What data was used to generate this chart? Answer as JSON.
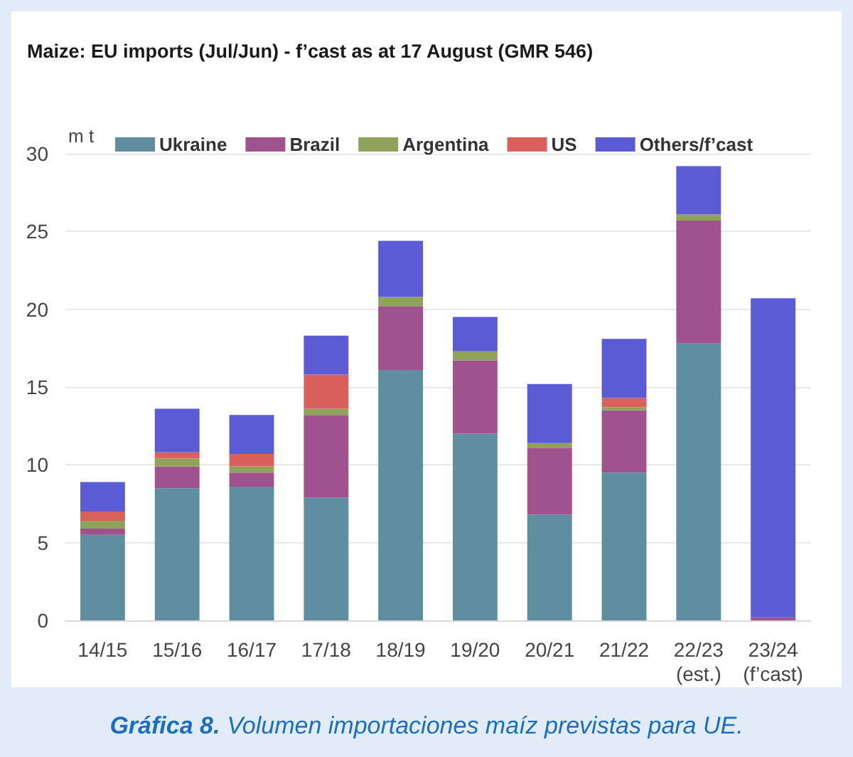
{
  "chart_data": {
    "type": "bar",
    "title": "Maize: EU imports (Jul/Jun) - f’cast as at 17 August (GMR 546)",
    "ylabel": "m t",
    "annotations": [
      "Gráfica 8. Volumen importaciones maíz previstas para UE."
    ],
    "categories": [
      "14/15",
      "15/16",
      "16/17",
      "17/18",
      "18/19",
      "19/20",
      "20/21",
      "21/22",
      "22/23 (est.)",
      "23/24 (f’cast)"
    ],
    "series": [
      {
        "name": "Ukraine",
        "color": "#5f8ea0",
        "values": [
          5.5,
          8.5,
          8.6,
          7.9,
          16.1,
          12.0,
          6.8,
          9.5,
          17.8,
          null
        ]
      },
      {
        "name": "Brazil",
        "color": "#a0528e",
        "values": [
          0.4,
          1.4,
          0.9,
          5.3,
          4.1,
          4.7,
          4.3,
          4.0,
          7.9,
          0.2
        ]
      },
      {
        "name": "Argentina",
        "color": "#8fa45a",
        "values": [
          0.5,
          0.5,
          0.4,
          0.4,
          0.6,
          0.6,
          0.3,
          0.2,
          0.4,
          null
        ]
      },
      {
        "name": "US",
        "color": "#d9605d",
        "values": [
          0.6,
          0.4,
          0.8,
          2.2,
          null,
          null,
          null,
          0.6,
          null,
          null
        ]
      },
      {
        "name": "Others/f’cast",
        "color": "#5b5bd6",
        "values": [
          1.9,
          2.8,
          2.5,
          2.5,
          3.6,
          2.2,
          3.8,
          3.8,
          3.1,
          20.5
        ]
      }
    ],
    "stacked": true,
    "ylim": [
      0,
      30
    ],
    "yticks": [
      0,
      5,
      10,
      15,
      20,
      25,
      30
    ],
    "grid": "y",
    "legend": "top"
  }
}
